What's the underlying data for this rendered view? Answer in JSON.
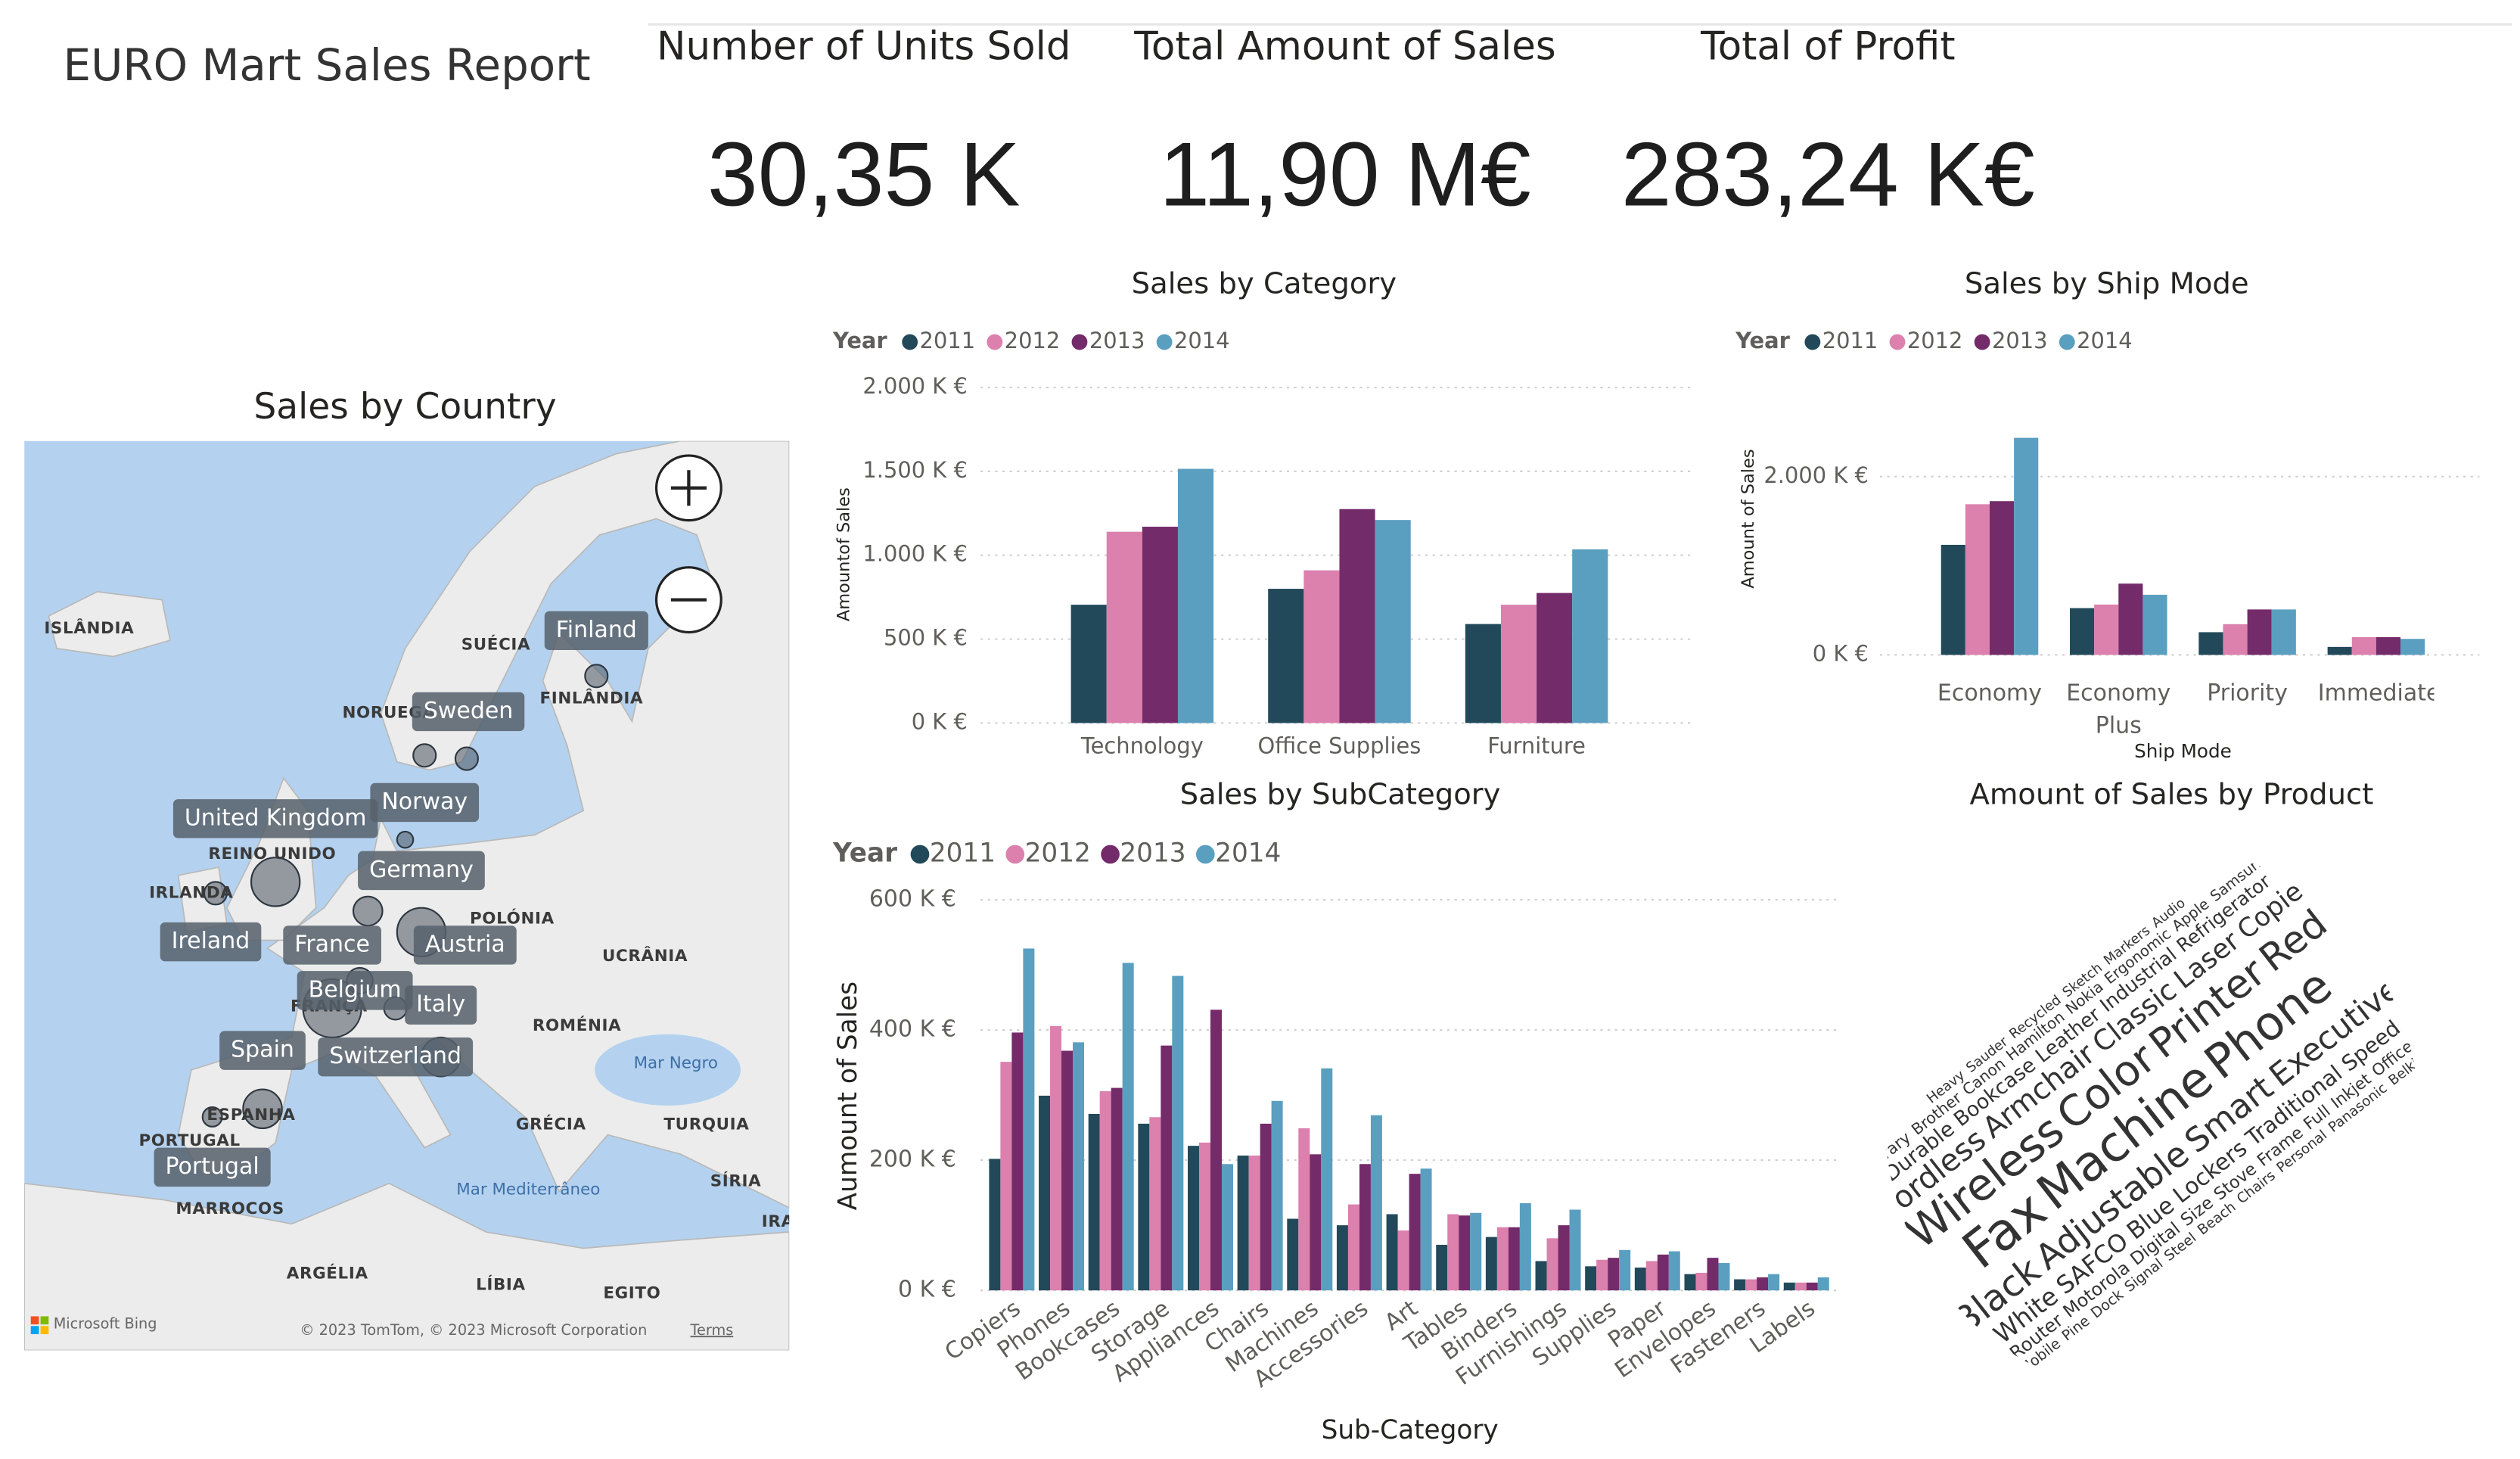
{
  "header": {
    "title": "EURO Mart Sales Report"
  },
  "kpis": [
    {
      "label": "Number of Units Sold",
      "value": "30,35 K"
    },
    {
      "label": "Total Amount of Sales",
      "value": "11,90 M€"
    },
    {
      "label": "Total of Profit",
      "value": "283,24 K€"
    }
  ],
  "map": {
    "title": "Sales by Country",
    "place_names": [
      "ISLÂNDIA",
      "SUÉCIA",
      "FINLÂNDIA",
      "NORUEGA",
      "REINO UNIDO",
      "IRLANDA",
      "POLÓNIA",
      "UCRÂNIA",
      "ROMÉNIA",
      "FRANÇA",
      "ESPANHA",
      "PORTUGAL",
      "MARROCOS",
      "ARGÉLIA",
      "LÍBIA",
      "EGITO",
      "GRÉCIA",
      "TURQUIA",
      "SÍRIA",
      "IRA"
    ],
    "sea_names": [
      "Mar Negro",
      "Mar Mediterrâneo"
    ],
    "country_labels": [
      "Finland",
      "Sweden",
      "Norway",
      "United Kingdom",
      "Germany",
      "Ireland",
      "France",
      "Austria",
      "Belgium",
      "Italy",
      "Spain",
      "Switzerland",
      "Portugal"
    ],
    "attribution": {
      "logo": "Microsoft Bing",
      "copyright": "© 2023 TomTom, © 2023 Microsoft Corporation",
      "terms": "Terms"
    }
  },
  "chart_data": [
    {
      "type": "bar",
      "title": "Sales by Category",
      "legend_title": "Year",
      "y_label": "Amountof Sales",
      "categories": [
        "Technology",
        "Office Supplies",
        "Furniture"
      ],
      "series": [
        {
          "name": "2011",
          "color": "#22495a",
          "values": [
            705,
            800,
            590
          ]
        },
        {
          "name": "2012",
          "color": "#dc80ad",
          "values": [
            1140,
            910,
            705
          ]
        },
        {
          "name": "2013",
          "color": "#742b69",
          "values": [
            1170,
            1275,
            775
          ]
        },
        {
          "name": "2014",
          "color": "#5a9fc0",
          "values": [
            1515,
            1210,
            1035
          ]
        }
      ],
      "ylim": [
        0,
        2000
      ],
      "yticks": [
        {
          "value": 0,
          "label": "0 K €"
        },
        {
          "value": 500,
          "label": "500 K €"
        },
        {
          "value": 1000,
          "label": "1.000 K €"
        },
        {
          "value": 1500,
          "label": "1.500 K €"
        },
        {
          "value": 2000,
          "label": "2.000 K €"
        }
      ],
      "grid": true
    },
    {
      "type": "bar",
      "title": "Sales by Ship Mode",
      "legend_title": "Year",
      "y_label": "Amount of Sales",
      "x_label": "Ship Mode",
      "categories": [
        "Economy",
        "Economy Plus",
        "Priority",
        "Immediate"
      ],
      "series": [
        {
          "name": "2011",
          "color": "#22495a",
          "values": [
            1235,
            525,
            255,
            90
          ]
        },
        {
          "name": "2012",
          "color": "#dc80ad",
          "values": [
            1690,
            565,
            345,
            200
          ]
        },
        {
          "name": "2013",
          "color": "#742b69",
          "values": [
            1725,
            800,
            510,
            200
          ]
        },
        {
          "name": "2014",
          "color": "#5a9fc0",
          "values": [
            2435,
            675,
            510,
            180
          ]
        }
      ],
      "ylim": [
        0,
        2500
      ],
      "yticks": [
        {
          "value": 0,
          "label": "0 K €"
        },
        {
          "value": 2000,
          "label": "2.000 K €"
        }
      ],
      "grid": true
    },
    {
      "type": "bar",
      "title": "Sales by SubCategory",
      "legend_title": "Year",
      "y_label": "Aumount of Sales",
      "x_label": "Sub-Category",
      "categories": [
        "Copiers",
        "Phones",
        "Bookcases",
        "Storage",
        "Appliances",
        "Chairs",
        "Machines",
        "Accessories",
        "Art",
        "Tables",
        "Binders",
        "Furnishings",
        "Supplies",
        "Paper",
        "Envelopes",
        "Fasteners",
        "Labels"
      ],
      "series": [
        {
          "name": "2011",
          "color": "#22495a",
          "values": [
            202,
            299,
            271,
            256,
            222,
            207,
            110,
            100,
            117,
            70,
            82,
            45,
            37,
            35,
            25,
            17,
            12
          ]
        },
        {
          "name": "2012",
          "color": "#dc80ad",
          "values": [
            351,
            406,
            306,
            266,
            227,
            207,
            249,
            132,
            92,
            117,
            97,
            80,
            47,
            45,
            27,
            17,
            12
          ]
        },
        {
          "name": "2013",
          "color": "#742b69",
          "values": [
            396,
            368,
            311,
            376,
            431,
            256,
            209,
            194,
            179,
            115,
            97,
            100,
            50,
            55,
            50,
            20,
            12
          ]
        },
        {
          "name": "2014",
          "color": "#5a9fc0",
          "values": [
            525,
            381,
            503,
            483,
            194,
            291,
            341,
            269,
            187,
            119,
            134,
            124,
            62,
            60,
            42,
            25,
            20
          ]
        }
      ],
      "ylim": [
        0,
        600
      ],
      "yticks": [
        {
          "value": 0,
          "label": "0 K €"
        },
        {
          "value": 200,
          "label": "200 K €"
        },
        {
          "value": 400,
          "label": "400 K €"
        },
        {
          "value": 600,
          "label": "600 K €"
        }
      ],
      "grid": true
    }
  ],
  "word_cloud": {
    "title": "Amount of Sales by Product",
    "words": [
      {
        "text": "Fax",
        "color": "#e8457a"
      },
      {
        "text": "Machine",
        "color": "#c94fa0"
      },
      {
        "text": "Phone",
        "color": "#3a7fc4"
      },
      {
        "text": "Wireless",
        "color": "#e6b91e"
      },
      {
        "text": "Color",
        "color": "#6d4fa8"
      },
      {
        "text": "Printer",
        "color": "#4d6b88"
      },
      {
        "text": "Red",
        "color": "#2e6eb5"
      },
      {
        "text": "Black",
        "color": "#3a8fd0"
      },
      {
        "text": "Adjustable",
        "color": "#7a7a7a"
      },
      {
        "text": "Smart",
        "color": "#555555"
      },
      {
        "text": "Executive",
        "color": "#9a3e92"
      },
      {
        "text": "Cordless",
        "color": "#666666"
      },
      {
        "text": "Armchair",
        "color": "#6b5aa8"
      },
      {
        "text": "Classic",
        "color": "#8a8a8a"
      },
      {
        "text": "Laser",
        "color": "#d95fa0"
      },
      {
        "text": "Copier",
        "color": "#4a4a4a"
      },
      {
        "text": "White",
        "color": "#3a7fc4"
      },
      {
        "text": "SAFCO",
        "color": "#8a6ab8"
      },
      {
        "text": "Blue",
        "color": "#555555"
      },
      {
        "text": "Lockers",
        "color": "#707070"
      },
      {
        "text": "Traditional",
        "color": "#6a6a6a"
      },
      {
        "text": "Speed",
        "color": "#e6b91e"
      },
      {
        "text": "Durable",
        "color": "#e6b91e"
      },
      {
        "text": "Bookcase",
        "color": "#d06a9a"
      },
      {
        "text": "Leather",
        "color": "#b07ac0"
      },
      {
        "text": "Industrial",
        "color": "#8a8a8a"
      },
      {
        "text": "Refrigerator",
        "color": "#4a6a8a"
      },
      {
        "text": "Router",
        "color": "#3a8fd0"
      },
      {
        "text": "Motorola",
        "color": "#5a6ab0"
      },
      {
        "text": "Digital",
        "color": "#4abfb0"
      },
      {
        "text": "Size",
        "color": "#555555"
      },
      {
        "text": "Stove",
        "color": "#d95fa0"
      },
      {
        "text": "Frame",
        "color": "#e6b91e"
      },
      {
        "text": "Full",
        "color": "#8a8a8a"
      },
      {
        "text": "Inkjet",
        "color": "#6a6a6a"
      },
      {
        "text": "Office",
        "color": "#9a9a9a"
      },
      {
        "text": "Library",
        "color": "#8a6ab8"
      },
      {
        "text": "Brother",
        "color": "#c84fa0"
      },
      {
        "text": "Canon",
        "color": "#e6b91e"
      },
      {
        "text": "Hamilton",
        "color": "#b04a8a"
      },
      {
        "text": "Nokia",
        "color": "#4a4a4a"
      },
      {
        "text": "Ergonomic",
        "color": "#555555"
      },
      {
        "text": "Apple",
        "color": "#3a8fd0"
      },
      {
        "text": "Samsung",
        "color": "#6a6a6a"
      },
      {
        "text": "Mobile",
        "color": "#7a7a7a"
      },
      {
        "text": "Pine",
        "color": "#4abfb0"
      },
      {
        "text": "Dock",
        "color": "#555555"
      },
      {
        "text": "Signal",
        "color": "#8a8a8a"
      },
      {
        "text": "Steel",
        "color": "#6a6a6a"
      },
      {
        "text": "Beach",
        "color": "#d95fa0"
      },
      {
        "text": "Chairs",
        "color": "#9ac83a"
      },
      {
        "text": "Personal",
        "color": "#e6b91e"
      },
      {
        "text": "Panasonic",
        "color": "#8a8a8a"
      },
      {
        "text": "Belkin",
        "color": "#6a6a6a"
      },
      {
        "text": "Heavy",
        "color": "#3a8fd0"
      },
      {
        "text": "Sauder",
        "color": "#555555"
      },
      {
        "text": "Recycled",
        "color": "#7a7a7a"
      },
      {
        "text": "Sketch",
        "color": "#4abfb0"
      },
      {
        "text": "Markers",
        "color": "#2e9e4a"
      },
      {
        "text": "Audio",
        "color": "#d95fa0"
      }
    ]
  }
}
